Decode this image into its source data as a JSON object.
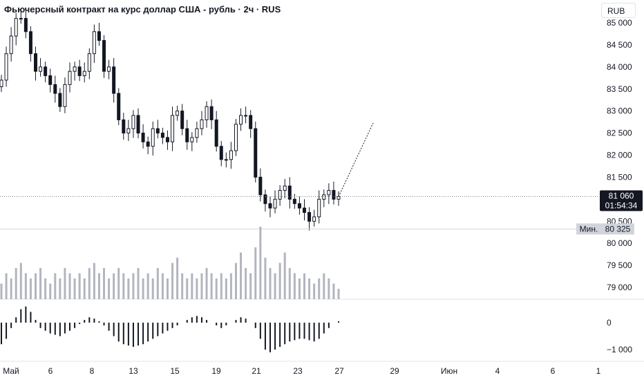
{
  "title": "Фьючерсный контракт на курс доллар США - рубль · 2ч · RUS",
  "currency_button": "RUB",
  "colors": {
    "candle": "#131722",
    "volume": "#b2b5be",
    "osc": "#131722",
    "grid": "#e0e3eb",
    "price_label_bg": "#131722",
    "min_label_bg": "#d1d4dc"
  },
  "price_axis": {
    "ticks": [
      "85 000",
      "84 500",
      "84 000",
      "83 500",
      "83 000",
      "82 500",
      "82 000",
      "81 500",
      "81 000",
      "80 500",
      "80 000",
      "79 500",
      "79 000"
    ]
  },
  "osc_axis": {
    "ticks": [
      "0",
      "−1 000"
    ]
  },
  "time_axis": {
    "ticks": [
      "Май",
      "6",
      "8",
      "13",
      "15",
      "19",
      "21",
      "23",
      "27",
      "29",
      "Июн",
      "4",
      "6",
      "1"
    ]
  },
  "last_price": {
    "value": "81 060",
    "countdown": "01:54:34"
  },
  "min_label": {
    "caption": "Мин.",
    "value": "80 325"
  },
  "chart_data": {
    "type": "candlestick",
    "price_range": [
      79000,
      85000
    ],
    "last": 81060,
    "min": 80325,
    "close_series": [
      83700,
      84300,
      84700,
      85100,
      85100,
      84800,
      84300,
      83900,
      84000,
      83800,
      83600,
      83400,
      83100,
      83600,
      83900,
      84000,
      83800,
      83900,
      84300,
      84800,
      84600,
      83900,
      84000,
      83400,
      82800,
      82500,
      82600,
      82900,
      82500,
      82300,
      82200,
      82600,
      82500,
      82400,
      82300,
      82900,
      83000,
      82600,
      82300,
      82400,
      82600,
      82800,
      83100,
      82800,
      82200,
      81900,
      81900,
      82100,
      82700,
      82900,
      82900,
      82600,
      81500,
      81100,
      80900,
      80800,
      81000,
      81200,
      81300,
      81000,
      80900,
      80800,
      80700,
      80500,
      80600,
      81000,
      81100,
      81200,
      81000,
      81060
    ],
    "volume_series": [
      3,
      5,
      4,
      6,
      7,
      5,
      4,
      5,
      6,
      4,
      3,
      5,
      4,
      6,
      5,
      4,
      5,
      4,
      6,
      7,
      5,
      6,
      4,
      5,
      6,
      5,
      4,
      5,
      6,
      4,
      5,
      4,
      6,
      5,
      4,
      7,
      8,
      5,
      4,
      5,
      4,
      5,
      6,
      5,
      4,
      5,
      4,
      5,
      7,
      9,
      6,
      5,
      10,
      14,
      8,
      6,
      5,
      7,
      9,
      6,
      5,
      4,
      5,
      4,
      3,
      4,
      5,
      4,
      3,
      2
    ],
    "osc_series": [
      -800,
      -600,
      -200,
      200,
      500,
      600,
      400,
      100,
      -200,
      -300,
      -400,
      -450,
      -500,
      -400,
      -300,
      -200,
      -50,
      100,
      200,
      150,
      50,
      -100,
      -300,
      -500,
      -700,
      -800,
      -850,
      -900,
      -850,
      -800,
      -700,
      -600,
      -500,
      -400,
      -300,
      -200,
      -100,
      0,
      100,
      200,
      250,
      200,
      100,
      0,
      -100,
      -200,
      -100,
      0,
      100,
      200,
      150,
      0,
      -200,
      -600,
      -1000,
      -1100,
      -1000,
      -900,
      -800,
      -700,
      -650,
      -600,
      -600,
      -650,
      -700,
      -600,
      -400,
      -200,
      0,
      50
    ]
  }
}
